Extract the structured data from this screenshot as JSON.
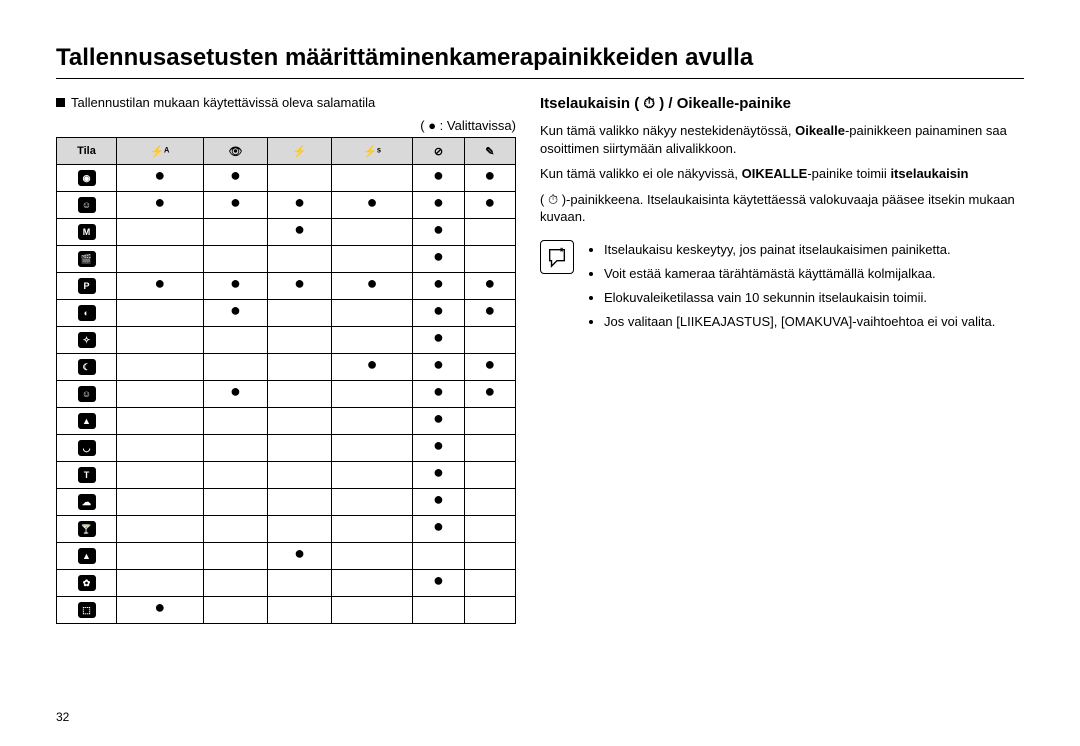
{
  "title": "Tallennusasetusten määrittäminenkamerapainikkeiden avulla",
  "left": {
    "intro": "Tallennustilan mukaan käytettävissä oleva salamatila",
    "caption": "( ● : Valittavissa)",
    "headers": {
      "tila": "Tila",
      "c1": "⚡ᴬ",
      "c2": "👁",
      "c3": "⚡",
      "c4": "⚡ˢ",
      "c5": "⊘",
      "c6": "✎"
    },
    "modeGlyphs": [
      "◉",
      "☺",
      "M",
      "🎬",
      "P",
      "◐",
      "✧",
      "☾",
      "☺",
      "▲",
      "◡",
      "T",
      "☁",
      "🍸",
      "▲",
      "✿",
      "⬚"
    ],
    "rows": [
      [
        1,
        1,
        0,
        0,
        1,
        1
      ],
      [
        1,
        1,
        1,
        1,
        1,
        1
      ],
      [
        0,
        0,
        1,
        0,
        1,
        0
      ],
      [
        0,
        0,
        0,
        0,
        1,
        0
      ],
      [
        1,
        1,
        1,
        1,
        1,
        1
      ],
      [
        0,
        1,
        0,
        0,
        1,
        1
      ],
      [
        0,
        0,
        0,
        0,
        1,
        0
      ],
      [
        0,
        0,
        0,
        1,
        1,
        1
      ],
      [
        0,
        1,
        0,
        0,
        1,
        1
      ],
      [
        0,
        0,
        0,
        0,
        1,
        0
      ],
      [
        0,
        0,
        0,
        0,
        1,
        0
      ],
      [
        0,
        0,
        0,
        0,
        1,
        0
      ],
      [
        0,
        0,
        0,
        0,
        1,
        0
      ],
      [
        0,
        0,
        0,
        0,
        1,
        0
      ],
      [
        0,
        0,
        1,
        0,
        0,
        0
      ],
      [
        0,
        0,
        0,
        0,
        1,
        0
      ],
      [
        1,
        0,
        0,
        0,
        0,
        0
      ]
    ]
  },
  "right": {
    "heading": "Itselaukaisin ( ⏱ ) / Oikealle-painike",
    "p1a": "Kun tämä valikko näkyy nestekidenäytössä, ",
    "p1b": "Oikealle",
    "p1c": "-painikkeen painaminen saa osoittimen siirtymään alivalikkoon.",
    "p2a": "Kun tämä valikko ei ole näkyvissä, ",
    "p2b": "OIKEALLE",
    "p2c": "-painike toimii ",
    "p2d": "itselaukaisin",
    "p3": "( ⏱ )-painikkeena. Itselaukaisinta käytettäessä valokuvaaja pääsee itsekin mukaan kuvaan.",
    "notes": [
      "Itselaukaisu keskeytyy, jos painat itselaukaisimen painiketta.",
      "Voit estää kameraa tärähtämästä käyttämällä kolmijalkaa.",
      "Elokuvaleiketilassa vain 10 sekunnin itselaukaisin toimii.",
      "Jos valitaan [LIIKEAJASTUS], [OMAKUVA]-vaihtoehtoa ei voi valita."
    ]
  },
  "pageNumber": "32"
}
